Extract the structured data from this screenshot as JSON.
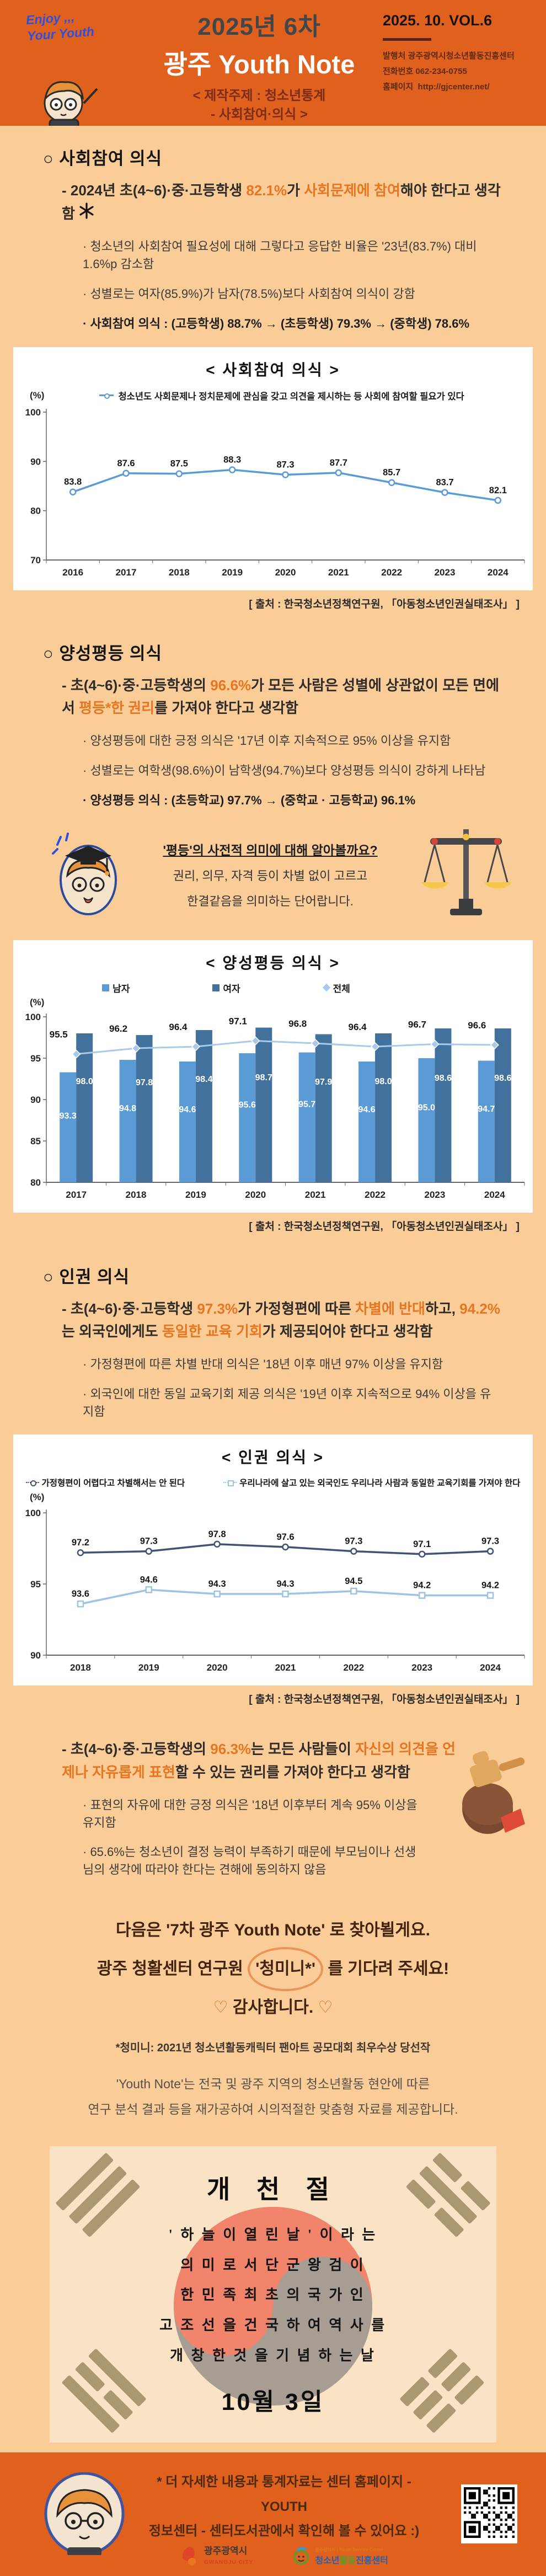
{
  "header": {
    "slogan": "Enjoy ,,,\nYour Youth",
    "title_line1": "2025년 6차",
    "title_line2": "광주 Youth Note",
    "subtitle_line1": "< 제작주제 : 청소년통계",
    "subtitle_line2": "- 사회참여·의식 >",
    "volume": "2025. 10. VOL.6",
    "publisher": "발행처  광주광역시청소년활동진흥센터",
    "phone": "전화번호  062-234-0755",
    "homepage_label": "홈페이지",
    "homepage": "http://gjcenter.net/"
  },
  "sections": {
    "social": {
      "heading": "○ 사회참여 의식",
      "lead": [
        {
          "t": "- 2024년 초(4~6)·중·고등학생 ",
          "hl": false
        },
        {
          "t": "82.1%",
          "hl": true
        },
        {
          "t": "가 ",
          "hl": false
        },
        {
          "t": "사회문제에 참여",
          "hl": true
        },
        {
          "t": "해야 한다고 생각함",
          "hl": false
        }
      ],
      "bullets": [
        "· 청소년의 사회참여 필요성에 대해 그렇다고 응답한 비율은 '23년(83.7%) 대비 1.6%p 감소함",
        "· 성별로는 여자(85.9%)가 남자(78.5%)보다 사회참여 의식이 강함"
      ],
      "bullet_bold": "· 사회참여 의식 : (고등학생) 88.7% → (초등학생) 79.3% → (중학생) 78.6%"
    },
    "gender": {
      "heading": "○ 양성평등 의식",
      "lead": [
        {
          "t": "- 초(4~6)·중·고등학생의 ",
          "hl": false
        },
        {
          "t": "96.6%",
          "hl": true
        },
        {
          "t": "가 모든 사람은 성별에 상관없이 모든 면에서 ",
          "hl": false
        },
        {
          "t": "평등*한 권리",
          "hl": true
        },
        {
          "t": "를 가져야 한다고 생각함",
          "hl": false
        }
      ],
      "bullets": [
        "· 양성평등에 대한 긍정 의식은 '17년 이후 지속적으로 95% 이상을 유지함",
        "· 성별로는 여학생(98.6%)이 남학생(94.7%)보다 양성평등 의식이 강하게 나타남"
      ],
      "bullet_bold": "· 양성평등 의식 : (초등학교) 97.7% → (중학교 · 고등학교) 96.1%",
      "callout": {
        "title": "'평등'의 사전적 의미에 대해 알아볼까요?",
        "line1": "권리, 의무, 자격 등이 차별 없이 고르고",
        "line2": "한결같음을 의미하는 단어랍니다."
      }
    },
    "rights": {
      "heading": "○ 인권 의식",
      "lead": [
        {
          "t": "- 초(4~6)·중·고등학생 ",
          "hl": false
        },
        {
          "t": "97.3%",
          "hl": true
        },
        {
          "t": "가 가정형편에 따른 ",
          "hl": false
        },
        {
          "t": "차별에 반대",
          "hl": true
        },
        {
          "t": "하고, ",
          "hl": false
        },
        {
          "t": "94.2%",
          "hl": true
        },
        {
          "t": "는 외국인에게도 ",
          "hl": false
        },
        {
          "t": "동일한 교육 기회",
          "hl": true
        },
        {
          "t": "가 제공되어야 한다고 생각함",
          "hl": false
        }
      ],
      "bullets": [
        "· 가정형편에 따른 차별 반대 의식은 '18년 이후 매년 97% 이상을 유지함",
        "· 외국인에 대한 동일 교육기회 제공 의식은 '19년 이후 지속적으로 94% 이상을 유지함"
      ]
    },
    "expression": {
      "lead": [
        {
          "t": "- 초(4~6)·중·고등학생의 ",
          "hl": false
        },
        {
          "t": "96.3%",
          "hl": true
        },
        {
          "t": "는 모든 사람들이 ",
          "hl": false
        },
        {
          "t": "자신의 의견을 언제나 자유롭게 표현",
          "hl": true
        },
        {
          "t": "할 수 있는 권리를 가져야 한다고 생각함",
          "hl": false
        }
      ],
      "bullets": [
        "· 표현의 자유에 대한 긍정 의식은 '18년 이후부터 계속 95% 이상을 유지함",
        "· 65.6%는 청소년이 결정 능력이 부족하기 때문에 부모님이나 선생님의 생각에 따라야 한다는 견해에 동의하지 않음"
      ]
    }
  },
  "chart_data": [
    {
      "type": "line",
      "title": "< 사회참여 의식 >",
      "unit": "(%)",
      "categories": [
        "2016",
        "2017",
        "2018",
        "2019",
        "2020",
        "2021",
        "2022",
        "2023",
        "2024"
      ],
      "series": [
        {
          "name": "청소년도 사회문제나 정치문제에 관심을 갖고 의견을 제시하는 등 사회에 참여할 필요가 있다",
          "values": [
            83.8,
            87.6,
            87.5,
            88.3,
            87.3,
            87.7,
            85.7,
            83.7,
            82.1
          ],
          "color": "#5B9BD5",
          "marker": "circle"
        }
      ],
      "ylim": [
        70,
        100
      ],
      "yticks": [
        70,
        80,
        90,
        100
      ],
      "legend_position": "top",
      "grid": false,
      "source": "[ 출처 : 한국청소년정책연구원, 「아동청소년인권실태조사」 ]"
    },
    {
      "type": "bar-line",
      "title": "< 양성평등 의식 >",
      "unit": "(%)",
      "categories": [
        "2017",
        "2018",
        "2019",
        "2020",
        "2021",
        "2022",
        "2023",
        "2024"
      ],
      "bar_series": [
        {
          "name": "남자",
          "values": [
            93.3,
            94.8,
            94.6,
            95.6,
            95.7,
            94.6,
            95.0,
            94.7
          ],
          "color": "#5B9BD5"
        },
        {
          "name": "여자",
          "values": [
            98.0,
            97.8,
            98.4,
            98.7,
            97.9,
            98.0,
            98.6,
            98.6
          ],
          "color": "#41719C"
        }
      ],
      "line_series": {
        "name": "전체",
        "values": [
          95.5,
          96.2,
          96.4,
          97.1,
          96.8,
          96.4,
          96.7,
          96.6
        ],
        "color": "#A9C9EA"
      },
      "ylim": [
        80,
        100
      ],
      "yticks": [
        80,
        85,
        90,
        95,
        100
      ],
      "legend_position": "top",
      "grid": false,
      "source": "[ 출처 : 한국청소년정책연구원, 「아동청소년인권실태조사」 ]"
    },
    {
      "type": "line",
      "title": "< 인권 의식 >",
      "unit": "(%)",
      "categories": [
        "2018",
        "2019",
        "2020",
        "2021",
        "2022",
        "2023",
        "2024"
      ],
      "series": [
        {
          "name": "가정형편이 어렵다고 차별해서는 안 된다",
          "values": [
            97.2,
            97.3,
            97.8,
            97.6,
            97.3,
            97.1,
            97.3
          ],
          "color": "#3F5377",
          "marker": "circle"
        },
        {
          "name": "우리나라에 살고 있는 외국인도 우리나라 사람과 동일한 교육기회를 가져야 한다",
          "values": [
            93.6,
            94.6,
            94.3,
            94.3,
            94.5,
            94.2,
            94.2
          ],
          "color": "#9DC3E6",
          "marker": "square"
        }
      ],
      "ylim": [
        90,
        100
      ],
      "yticks": [
        90,
        95,
        100
      ],
      "legend_position": "top",
      "grid": false,
      "source": "[ 출처 : 한국청소년정책연구원, 「아동청소년인권실태조사」 ]"
    }
  ],
  "outro": {
    "line1": "다음은 '7차 광주 Youth Note' 로 찾아뵐게요.",
    "line2_pre": "광주 청활센터 연구원",
    "line2_circled": "'청미니*'",
    "line2_post": "를 기다려 주세요!",
    "thanks": "감사합니다.",
    "heart": "♡",
    "footnote": "*청미니: 2021년 청소년활동캐릭터 팬아트 공모대회 최우수상 당선작",
    "desc1": "'Youth Note'는 전국 및 광주 지역의 청소년활동 현안에 따른",
    "desc2": "연구 분석 결과 등을 재가공하여 시의적절한 맞춤형 자료를 제공합니다."
  },
  "holiday": {
    "title": "개 천 절",
    "lines": [
      "' 하 늘 이  열 린  날 ' 이 라 는",
      "의 미 로 서  단 군 왕 검 이",
      "한 민 족  최 초 의  국 가 인",
      "고 조 선 을  건 국 하 여  역 사 를",
      "개 창 한  것 을  기 념 하 는  날"
    ],
    "date": "10월 3일"
  },
  "footer": {
    "note_line1": "*  더 자세한 내용과 통계자료는 센터 홈페이지 - YOUTH",
    "note_line2": "정보센터 - 센터도서관에서 확인해 볼 수 있어요 :)",
    "logo1_name": "광주광역시",
    "logo1_sub": "GWANGJU CITY",
    "logo2_top": "광주광역시 | Youth Service Center",
    "logo2_name_a": "청소년",
    "logo2_name_b": "활동",
    "logo2_name_c": "진흥센터"
  },
  "colors": {
    "header_bg": "#E0601E",
    "body_bg": "#FACC98",
    "highlight": "#E87620",
    "chart_blue": "#5B9BD5",
    "chart_dark_blue": "#41719C",
    "chart_pale_blue": "#A9C9EA",
    "navy": "#3F5377",
    "light_blue": "#9DC3E6",
    "holiday_bg": "#FAE3C4"
  }
}
